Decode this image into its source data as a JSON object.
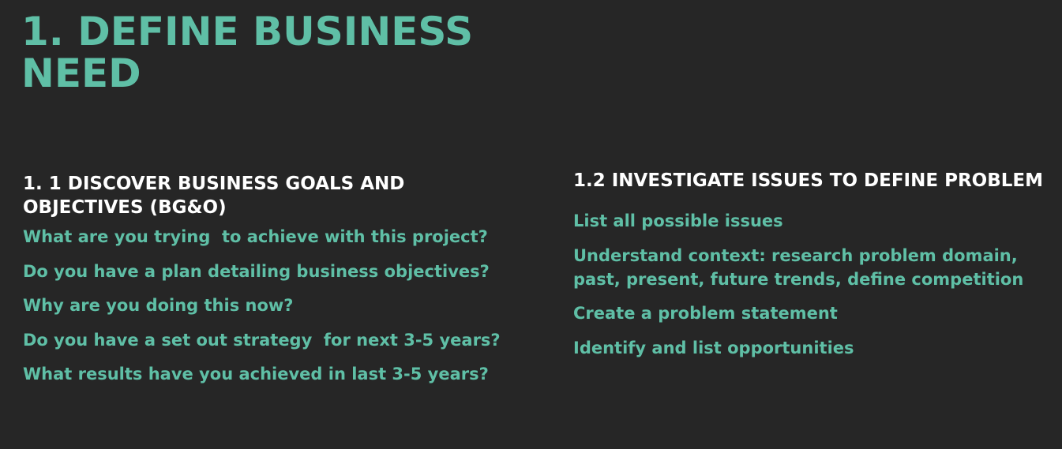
{
  "slide": {
    "title_lines": [
      "1. DEFINE BUSINESS",
      "NEED"
    ],
    "left": {
      "heading_lines": [
        "1. 1 DISCOVER BUSINESS GOALS AND",
        "OBJECTIVES (BG&O)"
      ],
      "items": [
        "What are you trying  to achieve with this project?",
        "Do you have a plan detailing business objectives?",
        "Why are you doing this now?",
        "Do you have a set out strategy  for next 3-5 years?",
        "What results have you achieved in last 3-5 years?"
      ]
    },
    "right": {
      "heading": "1.2 INVESTIGATE ISSUES TO DEFINE PROBLEM",
      "items": [
        "List all possible issues",
        [
          "Understand context: research problem domain,",
          "past, present, future trends, define competition"
        ],
        "Create a problem statement",
        "Identify and list opportunities"
      ]
    },
    "colors": {
      "background": "#262626",
      "accent": "#5fbfa6",
      "heading": "#ffffff"
    }
  }
}
